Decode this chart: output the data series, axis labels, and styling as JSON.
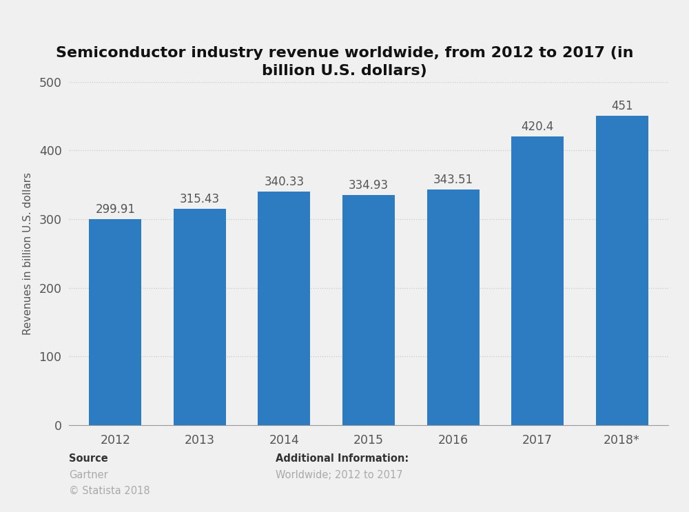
{
  "title": "Semiconductor industry revenue worldwide, from 2012 to 2017 (in\nbillion U.S. dollars)",
  "xlabel": "",
  "ylabel": "Revenues in billion U.S. dollars",
  "categories": [
    "2012",
    "2013",
    "2014",
    "2015",
    "2016",
    "2017",
    "2018*"
  ],
  "values": [
    299.91,
    315.43,
    340.33,
    334.93,
    343.51,
    420.4,
    451
  ],
  "bar_color": "#2d7cc1",
  "background_color": "#f0f0f0",
  "plot_bg_color": "#f0f0f0",
  "ylim": [
    0,
    500
  ],
  "yticks": [
    0,
    100,
    200,
    300,
    400,
    500
  ],
  "grid_color": "#c8c8c8",
  "title_fontsize": 16,
  "axis_label_fontsize": 11,
  "tick_fontsize": 12.5,
  "value_label_fontsize": 12,
  "source_text": "Source",
  "source_name": "Gartner",
  "source_copy": "© Statista 2018",
  "add_info_title": "Additional Information:",
  "add_info_body": "Worldwide; 2012 to 2017",
  "footer_fontsize": 10.5,
  "bar_width": 0.62
}
